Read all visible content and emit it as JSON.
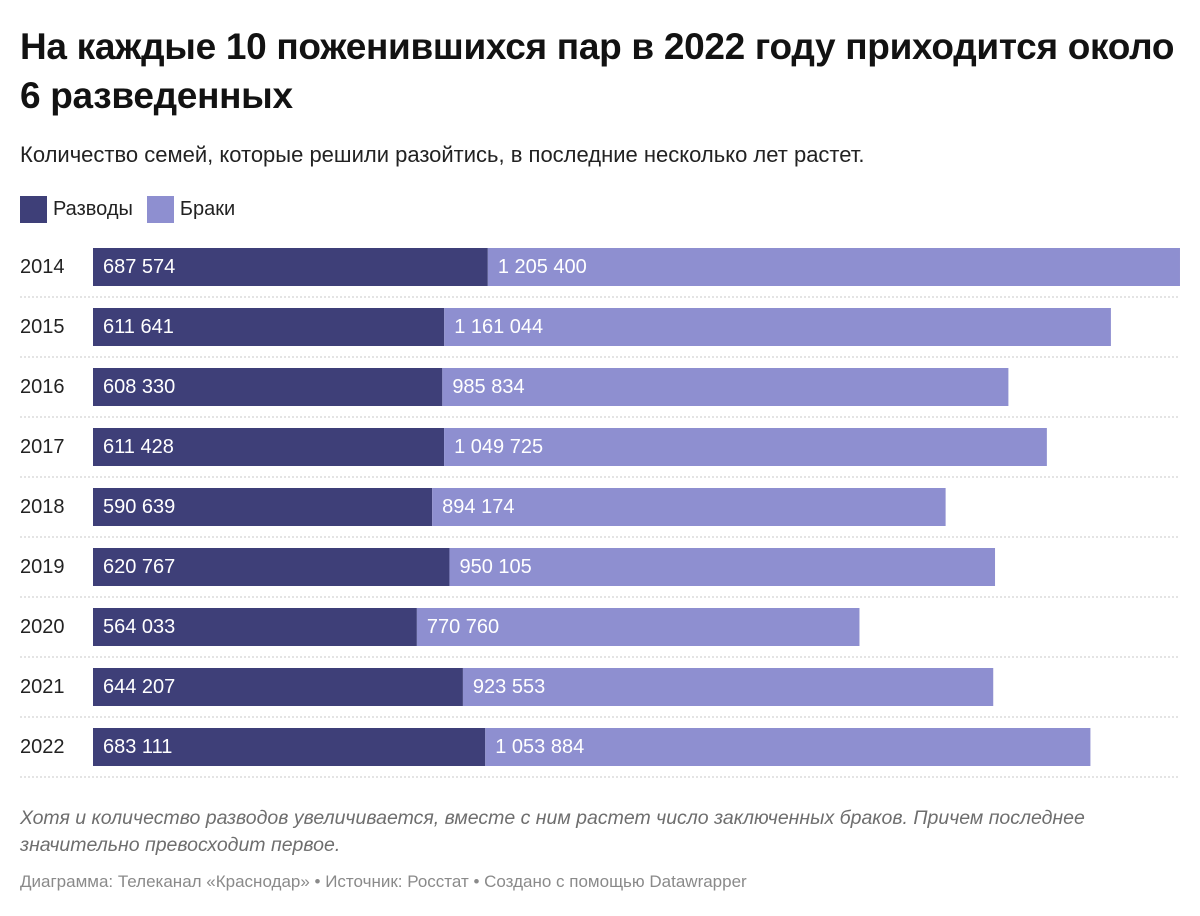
{
  "title": "На каждые 10 поженившихся пар в 2022 году приходится около 6 разведенных",
  "subtitle": "Количество семей, которые решили разойтись, в последние несколько лет растет.",
  "colors": {
    "divorces": "#3e3f78",
    "marriages": "#8e8fd0",
    "grid": "#c8c8c8"
  },
  "chart_data": {
    "type": "bar",
    "orientation": "horizontal",
    "stacked": true,
    "title": "На каждые 10 поженившихся пар в 2022 году приходится около 6 разведенных",
    "subtitle": "Количество семей, которые решили разойтись, в последние несколько лет растет.",
    "categories": [
      "2014",
      "2015",
      "2016",
      "2017",
      "2018",
      "2019",
      "2020",
      "2021",
      "2022"
    ],
    "series": [
      {
        "name": "Разводы",
        "values": [
          687574,
          611641,
          608330,
          611428,
          590639,
          620767,
          564033,
          644207,
          683111
        ],
        "labels": [
          "687 574",
          "611 641",
          "608 330",
          "611 428",
          "590 639",
          "620 767",
          "564 033",
          "644 207",
          "683 111"
        ]
      },
      {
        "name": "Браки",
        "values": [
          1205400,
          1161044,
          985834,
          1049725,
          894174,
          950105,
          770760,
          923553,
          1053884
        ],
        "labels": [
          "1 205 400",
          "1 161 044",
          "985 834",
          "1 049 725",
          "894 174",
          "950 105",
          "770 760",
          "923 553",
          "1 053 884"
        ]
      }
    ],
    "xlim": [
      0,
      1893000
    ],
    "grid": "horizontal-separators",
    "legend": "top-left"
  },
  "legend": [
    {
      "label": "Разводы"
    },
    {
      "label": "Браки"
    }
  ],
  "note": "Хотя и количество разводов увеличивается, вместе с ним растет число заключенных браков. Причем последнее значительно превосходит первое.",
  "footer": "Диаграмма: Телеканал «Краснодар» • Источник: Росстат • Создано с помощью Datawrapper"
}
